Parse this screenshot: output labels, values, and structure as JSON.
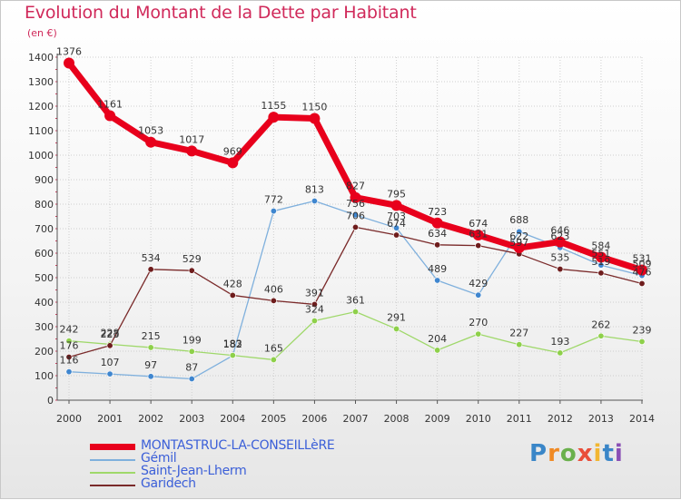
{
  "title": "Evolution du Montant de la Dette par Habitant",
  "unit": "(en €)",
  "logo": "Proxiti",
  "colors": {
    "title": "#d0295a",
    "axis_text": "#333333",
    "grid": "#cfcfcf"
  },
  "chart_data": {
    "type": "line",
    "title": "Evolution du Montant de la Dette par Habitant",
    "ylabel": "(en €)",
    "xlabel": "",
    "ylim": [
      0,
      1400
    ],
    "yticks": [
      0,
      100,
      200,
      300,
      400,
      500,
      600,
      700,
      800,
      900,
      1000,
      1100,
      1200,
      1300,
      1400
    ],
    "x": [
      "2000",
      "2001",
      "2002",
      "2003",
      "2004",
      "2005",
      "2006",
      "2007",
      "2008",
      "2009",
      "2010",
      "2011",
      "2012",
      "2013",
      "2014"
    ],
    "grid": true,
    "legend_position": "bottom-left",
    "series": [
      {
        "name": "MONTASTRUC-LA-CONSEILLèRE",
        "color": "#e8001c",
        "marker": "#e8001c",
        "width": 7,
        "values": [
          1376,
          1161,
          1053,
          1017,
          969,
          1155,
          1150,
          827,
          795,
          723,
          674,
          622,
          646,
          584,
          531
        ]
      },
      {
        "name": "Gémil",
        "color": "#7fb0dd",
        "marker": "#3f86cf",
        "width": 1.3,
        "values": [
          116,
          107,
          97,
          87,
          182,
          772,
          813,
          756,
          703,
          489,
          429,
          688,
          623,
          551,
          509
        ]
      },
      {
        "name": "Saint-Jean-Lherm",
        "color": "#9fd86a",
        "marker": "#8ed04a",
        "width": 1.3,
        "values": [
          242,
          228,
          215,
          199,
          183,
          165,
          324,
          361,
          291,
          204,
          270,
          227,
          193,
          262,
          239
        ]
      },
      {
        "name": "Garidech",
        "color": "#7a2a2a",
        "marker": "#6e1c1c",
        "width": 1.3,
        "values": [
          176,
          223,
          534,
          529,
          428,
          406,
          391,
          706,
          674,
          634,
          631,
          597,
          535,
          519,
          476
        ]
      }
    ]
  }
}
